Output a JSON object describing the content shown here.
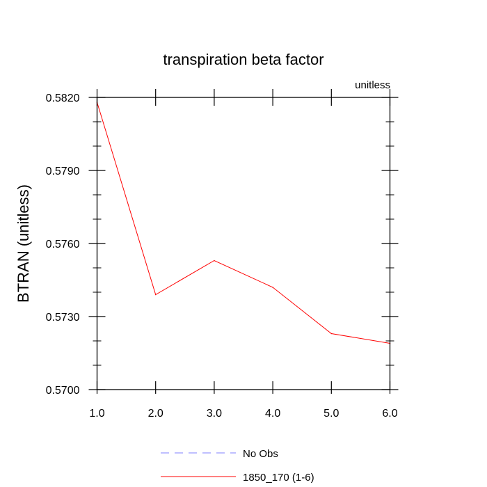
{
  "chart_data": {
    "type": "line",
    "title": "transpiration beta factor",
    "subtitle": "unitless",
    "xlabel": "",
    "ylabel": "BTRAN  (unitless)",
    "xlim": [
      1.0,
      6.0
    ],
    "ylim": [
      0.57,
      0.582
    ],
    "x_ticks": [
      1.0,
      2.0,
      3.0,
      4.0,
      5.0,
      6.0
    ],
    "x_tick_labels": [
      "1.0",
      "2.0",
      "3.0",
      "4.0",
      "5.0",
      "6.0"
    ],
    "y_ticks": [
      0.57,
      0.573,
      0.576,
      0.579,
      0.582
    ],
    "y_tick_labels": [
      "0.5700",
      "0.5730",
      "0.5760",
      "0.5790",
      "0.5820"
    ],
    "grid": false,
    "legend_position": "bottom",
    "series": [
      {
        "name": "No Obs",
        "color": "#7f7fff",
        "dash": "dashed",
        "x": [],
        "y": []
      },
      {
        "name": "1850_170 (1-6)",
        "color": "#ff0000",
        "dash": "solid",
        "x": [
          1.0,
          2.0,
          3.0,
          4.0,
          5.0,
          6.0
        ],
        "y": [
          0.5818,
          0.5739,
          0.5753,
          0.5742,
          0.5723,
          0.5719
        ]
      }
    ]
  }
}
